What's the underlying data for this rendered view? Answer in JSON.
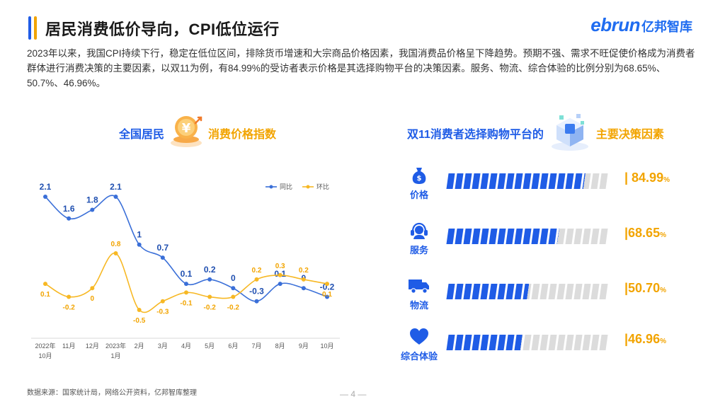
{
  "header": {
    "title": "居民消费低价导向，CPI低位运行",
    "logo_en": "ebrun",
    "logo_cn": "亿邦智库"
  },
  "intro": "2023年以来，我国CPI持续下行，稳定在低位区间，排除货币增速和大宗商品价格因素，我国消费品价格呈下降趋势。预期不强、需求不旺促使价格成为消费者群体进行消费决策的主要因素，以双11为例，有84.99%的受访者表示价格是其选择购物平台的决策因素。服务、物流、综合体验的比例分别为68.65%、50.7%、46.96%。",
  "left_section": {
    "title_part1": "全国居民",
    "title_part2": "消费价格指数"
  },
  "right_section": {
    "title_part1": "双11消费者选择购物平台的",
    "title_part2": "主要决策因素"
  },
  "chart_data": [
    {
      "type": "line",
      "categories": [
        "2022年\n10月",
        "11月",
        "12月",
        "2023年\n1月",
        "2月",
        "3月",
        "4月",
        "5月",
        "6月",
        "7月",
        "8月",
        "9月",
        "10月"
      ],
      "series": [
        {
          "name": "同比",
          "color": "#3a6fd8",
          "values": [
            2.1,
            1.6,
            1.8,
            2.1,
            1,
            0.7,
            0.1,
            0.2,
            0,
            -0.3,
            0.1,
            0,
            -0.2
          ]
        },
        {
          "name": "环比",
          "color": "#f7b824",
          "values": [
            0.1,
            -0.2,
            0,
            0.8,
            -0.5,
            -0.3,
            -0.1,
            -0.2,
            -0.2,
            0.2,
            0.3,
            0.2,
            0.1
          ]
        }
      ],
      "legend_position": "top-right",
      "grid": false
    },
    {
      "type": "bar",
      "categories": [
        "价格",
        "服务",
        "物流",
        "综合体验"
      ],
      "values": [
        84.99,
        68.65,
        50.7,
        46.96
      ],
      "value_labels": [
        "| 84.99",
        "|68.65",
        "|50.70",
        "|46.96"
      ],
      "unit": "%",
      "icons": [
        "money-bag-icon",
        "headset-icon",
        "truck-icon",
        "heart-icon"
      ],
      "ylim": [
        0,
        100
      ]
    }
  ],
  "footer": {
    "source": "数据来源：国家统计局，网络公开资料，亿邦智库整理",
    "page": "— 4 —"
  },
  "colors": {
    "primary": "#1f5ce6",
    "accent": "#f2a400",
    "line_yoy": "#3a6fd8",
    "line_mom": "#f7b824"
  }
}
